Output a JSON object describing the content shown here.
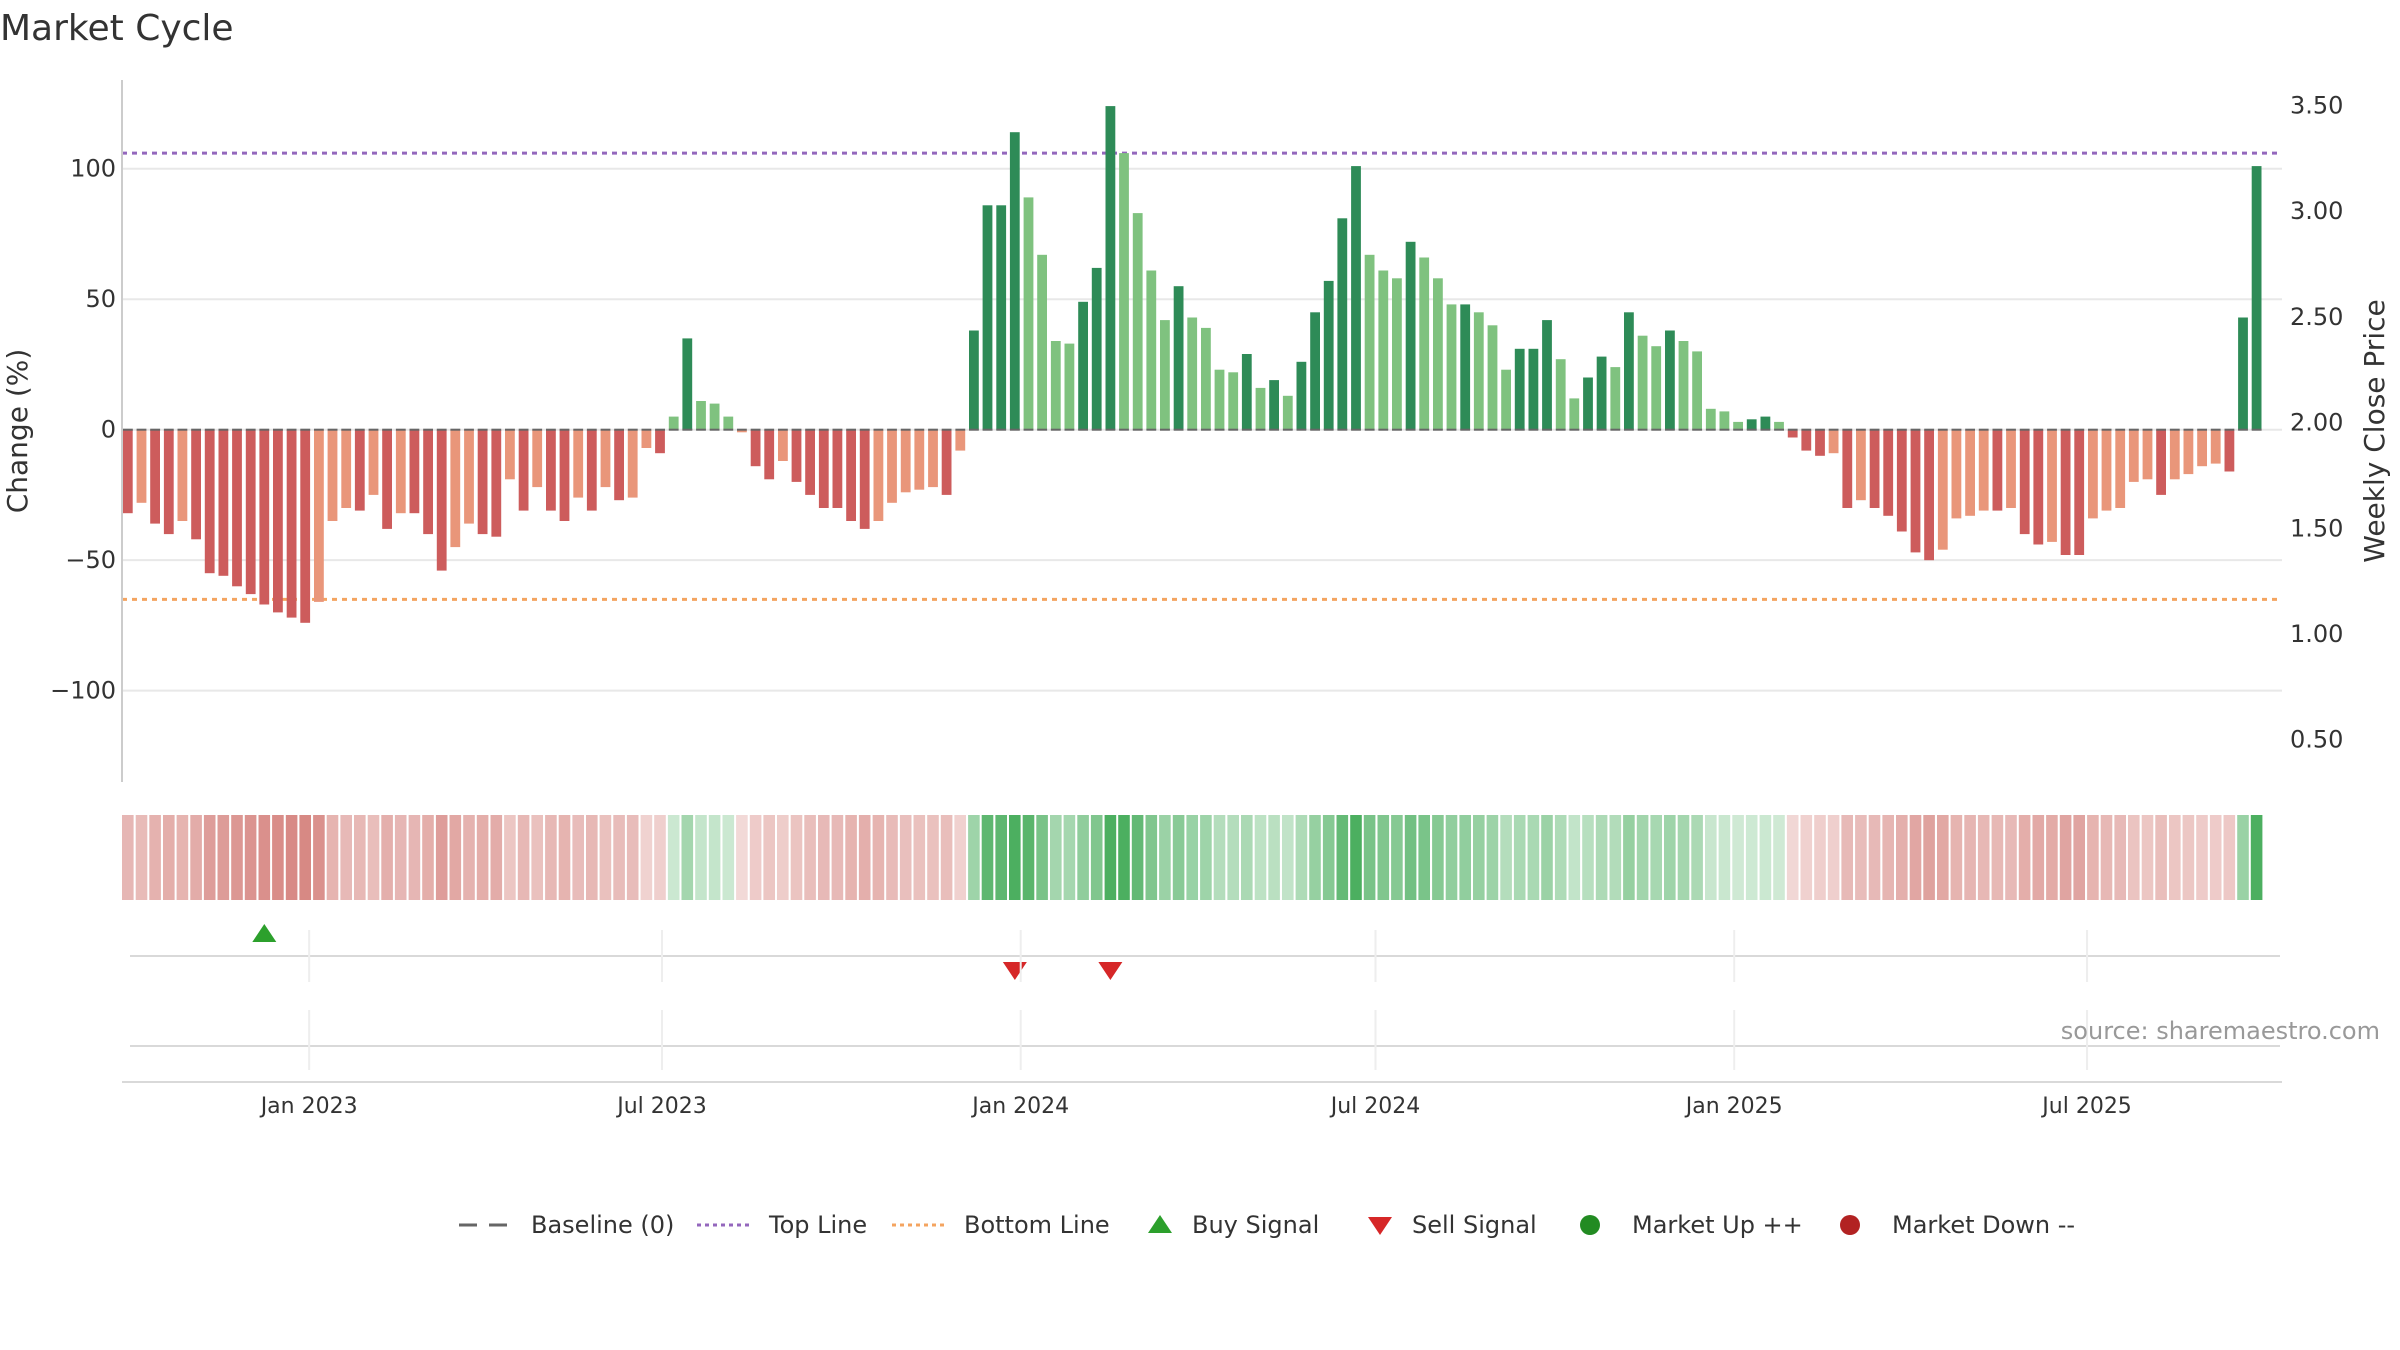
{
  "chart_data": {
    "type": "bar",
    "title": "Market Cycle",
    "ylabel": "Change (%)",
    "y2label": "Weekly Close Price",
    "ylim": [
      -135,
      134
    ],
    "y2lim": [
      0.3,
      3.62
    ],
    "yticks": [
      100,
      50,
      0,
      -50,
      -100
    ],
    "ytick_labels": [
      "100",
      "50",
      "0",
      "−50",
      "−100"
    ],
    "y2ticks": [
      3.5,
      3.0,
      2.5,
      2.0,
      1.5,
      1.0,
      0.5
    ],
    "y2tick_labels": [
      "3.50",
      "3.00",
      "2.50",
      "2.00",
      "1.50",
      "1.00",
      "0.50"
    ],
    "xlim": [
      "2022-09-27",
      "2025-10-09"
    ],
    "xticks": [
      "2023-01-01",
      "2023-07-01",
      "2024-01-01",
      "2024-07-01",
      "2025-01-01",
      "2025-07-01"
    ],
    "xtick_labels": [
      "Jan 2023",
      "Jul 2023",
      "Jan 2024",
      "Jul 2024",
      "Jan 2025",
      "Jul 2025"
    ],
    "top_line": 106,
    "bottom_line": -65,
    "baseline": 0,
    "first_week": "2022-09-30",
    "week_step_days": 7,
    "series": [
      {
        "name": "Change (%)",
        "values": [
          -32,
          -28,
          -36,
          -40,
          -35,
          -42,
          -55,
          -56,
          -60,
          -63,
          -67,
          -70,
          -72,
          -74,
          -66,
          -35,
          -30,
          -31,
          -25,
          -38,
          -32,
          -32,
          -40,
          -54,
          -45,
          -36,
          -40,
          -41,
          -19,
          -31,
          -22,
          -31,
          -35,
          -26,
          -31,
          -22,
          -27,
          -26,
          -7,
          -9,
          5,
          35,
          11,
          10,
          5,
          -1,
          -14,
          -19,
          -12,
          -20,
          -25,
          -30,
          -30,
          -35,
          -38,
          -35,
          -28,
          -24,
          -23,
          -22,
          -25,
          -8,
          38,
          86,
          86,
          114,
          89,
          67,
          34,
          33,
          49,
          62,
          124,
          106,
          83,
          61,
          42,
          55,
          43,
          39,
          23,
          22,
          29,
          16,
          19,
          13,
          26,
          45,
          57,
          81,
          101,
          67,
          61,
          58,
          72,
          66,
          58,
          48,
          48,
          45,
          40,
          23,
          31,
          31,
          42,
          27,
          12,
          20,
          28,
          24,
          45,
          36,
          32,
          38,
          34,
          30,
          8,
          7,
          3,
          4,
          5,
          3,
          -3,
          -8,
          -10,
          -9,
          -30,
          -27,
          -30,
          -33,
          -39,
          -47,
          -50,
          -46,
          -34,
          -33,
          -31,
          -31,
          -30,
          -40,
          -44,
          -43,
          -48,
          -48,
          -34,
          -31,
          -30,
          -20,
          -19,
          -25,
          -19,
          -17,
          -14,
          -13,
          -16,
          43,
          101
        ]
      }
    ],
    "signals": [
      {
        "name": "Buy Signal",
        "week_index": 10,
        "type": "buy"
      },
      {
        "name": "Sell Signal",
        "week_index": 65,
        "type": "sell"
      },
      {
        "name": "Sell Signal",
        "week_index": 72,
        "type": "sell"
      }
    ],
    "legend": {
      "placement": "bottom-center",
      "items": [
        {
          "label": "Baseline (0)",
          "kind": "dash",
          "color": "#666666"
        },
        {
          "label": "Top Line",
          "kind": "dotted",
          "color": "#9467bd"
        },
        {
          "label": "Bottom Line",
          "kind": "dotted",
          "color": "#f4a460"
        },
        {
          "label": "Buy Signal",
          "kind": "triangle-up",
          "color": "#2ca02c"
        },
        {
          "label": "Sell Signal",
          "kind": "triangle-down",
          "color": "#d62728"
        },
        {
          "label": "Market Up ++",
          "kind": "circle",
          "color": "#228b22"
        },
        {
          "label": "Market Down --",
          "kind": "circle",
          "color": "#b22222"
        }
      ]
    },
    "colors": {
      "up_strong": "#2e8b57",
      "up_weak": "#7fc27f",
      "down_strong": "#cd5c5c",
      "down_weak": "#e9967a",
      "top_line": "#9467bd",
      "bottom_line": "#f4a460",
      "buy": "#2ca02c",
      "sell": "#d62728",
      "heat_up": "#4caf60",
      "heat_down": "#cd6b65"
    },
    "grid": true,
    "source": "source: sharemaestro.com"
  }
}
